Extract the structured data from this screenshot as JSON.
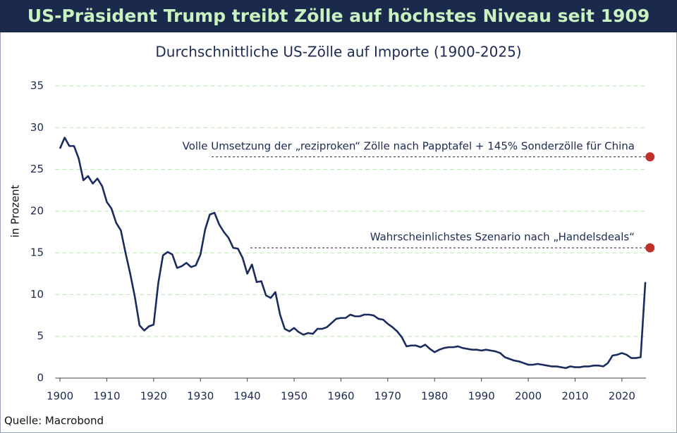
{
  "chart_data": {
    "type": "line",
    "title": "US-Präsident Trump treibt Zölle auf höchstes Niveau seit 1909",
    "subtitle": "Durchschnittliche US-Zölle auf Importe (1900-2025)",
    "y_label": "in Prozent",
    "source": "Quelle: Macrobond",
    "x": [
      1900,
      1901,
      1902,
      1903,
      1904,
      1905,
      1906,
      1907,
      1908,
      1909,
      1910,
      1911,
      1912,
      1913,
      1914,
      1915,
      1916,
      1917,
      1918,
      1919,
      1920,
      1921,
      1922,
      1923,
      1924,
      1925,
      1926,
      1927,
      1928,
      1929,
      1930,
      1931,
      1932,
      1933,
      1934,
      1935,
      1936,
      1937,
      1938,
      1939,
      1940,
      1941,
      1942,
      1943,
      1944,
      1945,
      1946,
      1947,
      1948,
      1949,
      1950,
      1951,
      1952,
      1953,
      1954,
      1955,
      1956,
      1957,
      1958,
      1959,
      1960,
      1961,
      1962,
      1963,
      1964,
      1965,
      1966,
      1967,
      1968,
      1969,
      1970,
      1971,
      1972,
      1973,
      1974,
      1975,
      1976,
      1977,
      1978,
      1979,
      1980,
      1981,
      1982,
      1983,
      1984,
      1985,
      1986,
      1987,
      1988,
      1989,
      1990,
      1991,
      1992,
      1993,
      1994,
      1995,
      1996,
      1997,
      1998,
      1999,
      2000,
      2001,
      2002,
      2003,
      2004,
      2005,
      2006,
      2007,
      2008,
      2009,
      2010,
      2011,
      2012,
      2013,
      2014,
      2015,
      2016,
      2017,
      2018,
      2019,
      2020,
      2021,
      2022,
      2023,
      2024,
      2025
    ],
    "series": [
      {
        "color": "#1c2b5e",
        "values": [
          27.5,
          28.8,
          27.8,
          27.8,
          26.3,
          23.7,
          24.2,
          23.3,
          23.9,
          23.0,
          21.1,
          20.3,
          18.6,
          17.7,
          15.0,
          12.5,
          9.7,
          6.3,
          5.7,
          6.2,
          6.4,
          11.4,
          14.7,
          15.1,
          14.8,
          13.2,
          13.4,
          13.8,
          13.3,
          13.5,
          14.8,
          17.8,
          19.6,
          19.8,
          18.4,
          17.5,
          16.8,
          15.6,
          15.5,
          14.4,
          12.5,
          13.6,
          11.5,
          11.6,
          9.9,
          9.6,
          10.3,
          7.6,
          5.9,
          5.6,
          6.0,
          5.5,
          5.2,
          5.4,
          5.3,
          5.9,
          5.9,
          6.1,
          6.6,
          7.1,
          7.2,
          7.2,
          7.6,
          7.4,
          7.4,
          7.6,
          7.6,
          7.5,
          7.1,
          7.0,
          6.5,
          6.1,
          5.6,
          4.9,
          3.8,
          3.9,
          3.9,
          3.7,
          4.0,
          3.5,
          3.1,
          3.4,
          3.6,
          3.7,
          3.7,
          3.8,
          3.6,
          3.5,
          3.4,
          3.4,
          3.3,
          3.4,
          3.3,
          3.2,
          3.0,
          2.5,
          2.3,
          2.1,
          2.0,
          1.8,
          1.6,
          1.6,
          1.7,
          1.6,
          1.5,
          1.4,
          1.4,
          1.3,
          1.2,
          1.4,
          1.3,
          1.3,
          1.4,
          1.4,
          1.5,
          1.5,
          1.4,
          1.8,
          2.7,
          2.8,
          3.0,
          2.8,
          2.4,
          2.4,
          2.5,
          11.5
        ]
      }
    ],
    "points": [
      {
        "label": "Volle Umsetzung der „reziproken“ Zölle nach Papptafel + 145% Sonderzölle für China",
        "x": 2026,
        "y": 26.5,
        "color": "#c0302a"
      },
      {
        "label": "Wahrscheinlichstes Szenario nach „Handelsdeals“",
        "x": 2026,
        "y": 15.6,
        "color": "#c0302a"
      }
    ],
    "xlim": [
      1899,
      2028
    ],
    "ylim": [
      0,
      35
    ],
    "xticks": [
      1900,
      1910,
      1920,
      1930,
      1940,
      1950,
      1960,
      1970,
      1980,
      1990,
      2000,
      2010,
      2020
    ],
    "yticks": [
      0,
      5,
      10,
      15,
      20,
      25,
      30,
      35
    ],
    "grid": true
  }
}
